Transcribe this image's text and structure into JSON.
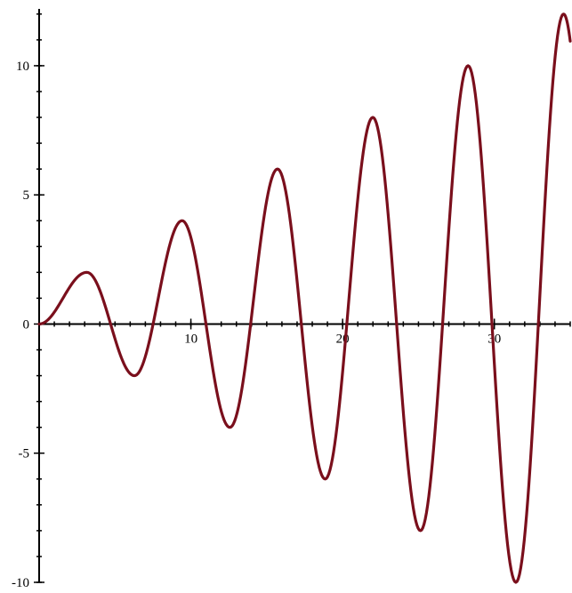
{
  "chart_data": {
    "type": "line",
    "title": "",
    "xlabel": "",
    "ylabel": "",
    "xlim": [
      0,
      35
    ],
    "ylim": [
      -10,
      12.2
    ],
    "grid": false,
    "legend": "none",
    "colors": {
      "series": "#7a0f1c",
      "axis": "#000000",
      "background": "#ffffff"
    },
    "x_ticks": [
      {
        "value": 10,
        "label": "10"
      },
      {
        "value": 20,
        "label": "20"
      },
      {
        "value": 30,
        "label": "30"
      }
    ],
    "y_ticks": [
      {
        "value": 10,
        "label": "10"
      },
      {
        "value": 5,
        "label": "5"
      },
      {
        "value": 0,
        "label": "0"
      },
      {
        "value": -5,
        "label": "-5"
      },
      {
        "value": -10,
        "label": "-10"
      }
    ],
    "x_minor_step": 1,
    "y_minor_step": 1,
    "series": [
      {
        "x": [
          0,
          3.14,
          6.28,
          9.42,
          12.57,
          15.71,
          18.85,
          21.99,
          25.13,
          28.27,
          31.42,
          34.56
        ],
        "y": [
          0,
          2,
          -2,
          4,
          -4,
          6,
          -6,
          8,
          -8,
          10,
          -10,
          12
        ]
      }
    ]
  }
}
